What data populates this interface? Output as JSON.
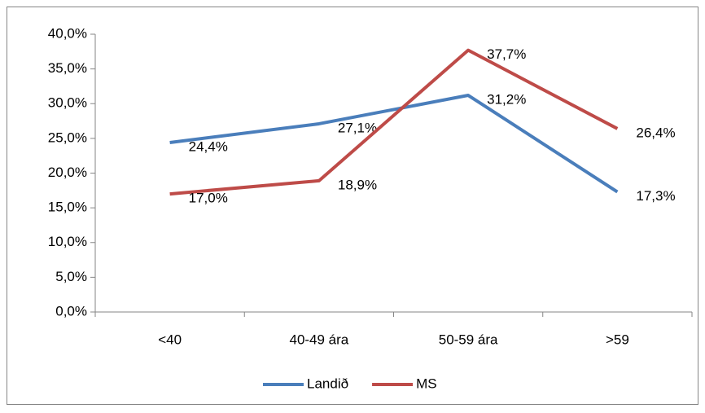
{
  "chart_data": {
    "type": "line",
    "categories": [
      "<40",
      "40-49 ára",
      "50-59 ára",
      ">59"
    ],
    "series": [
      {
        "name": "Landið",
        "color": "#4a7ebb",
        "values": [
          24.4,
          27.1,
          31.2,
          17.3
        ],
        "value_labels": [
          "24,4%",
          "27,1%",
          "31,2%",
          "17,3%"
        ]
      },
      {
        "name": "MS",
        "color": "#be4b48",
        "values": [
          17.0,
          18.9,
          37.7,
          26.4
        ],
        "value_labels": [
          "17,0%",
          "18,9%",
          "37,7%",
          "26,4%"
        ]
      }
    ],
    "ylim": [
      0,
      40
    ],
    "yticks": [
      {
        "value": 0,
        "label": "0,0%"
      },
      {
        "value": 5,
        "label": "5,0%"
      },
      {
        "value": 10,
        "label": "10,0%"
      },
      {
        "value": 15,
        "label": "15,0%"
      },
      {
        "value": 20,
        "label": "20,0%"
      },
      {
        "value": 25,
        "label": "25,0%"
      },
      {
        "value": 30,
        "label": "30,0%"
      },
      {
        "value": 35,
        "label": "35,0%"
      },
      {
        "value": 40,
        "label": "40,0%"
      }
    ],
    "legend": "bottom"
  }
}
